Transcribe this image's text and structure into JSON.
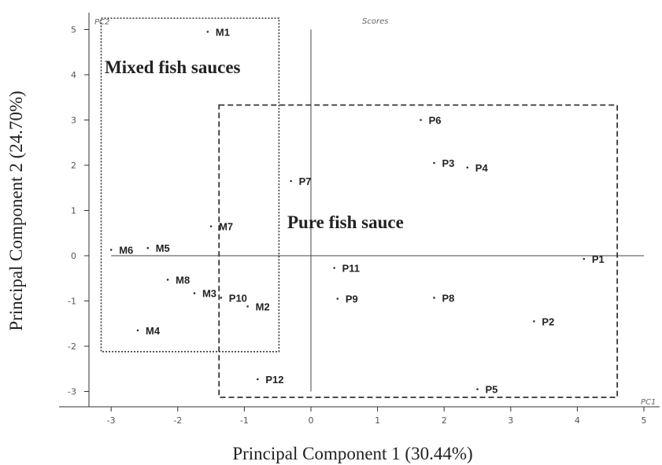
{
  "chart_data": {
    "type": "scatter",
    "title": "Scores",
    "xlabel": "Principal Component 1 (30.44%)",
    "ylabel": "Principal Component 2 (24.70%)",
    "x_axis_tag": "PC1",
    "y_axis_tag": "PC2",
    "xlim": [
      -3.4,
      5.0
    ],
    "ylim": [
      -3.4,
      5.2
    ],
    "xticks": [
      -3,
      -2,
      -1,
      0,
      1,
      2,
      3,
      4,
      5
    ],
    "yticks": [
      -3,
      -2,
      -1,
      0,
      1,
      2,
      3,
      4,
      5
    ],
    "grid": false,
    "points": [
      {
        "label": "M1",
        "x": -1.55,
        "y": 4.95
      },
      {
        "label": "M2",
        "x": -0.95,
        "y": -1.12
      },
      {
        "label": "M3",
        "x": -1.75,
        "y": -0.83
      },
      {
        "label": "M4",
        "x": -2.6,
        "y": -1.65
      },
      {
        "label": "M5",
        "x": -2.45,
        "y": 0.17
      },
      {
        "label": "M6",
        "x": -3.0,
        "y": 0.13
      },
      {
        "label": "M7",
        "x": -1.5,
        "y": 0.65
      },
      {
        "label": "M8",
        "x": -2.15,
        "y": -0.53
      },
      {
        "label": "P1",
        "x": 4.1,
        "y": -0.07
      },
      {
        "label": "P2",
        "x": 3.35,
        "y": -1.45
      },
      {
        "label": "P3",
        "x": 1.85,
        "y": 2.05
      },
      {
        "label": "P4",
        "x": 2.35,
        "y": 1.95
      },
      {
        "label": "P5",
        "x": 2.5,
        "y": -2.95
      },
      {
        "label": "P6",
        "x": 1.65,
        "y": 3.0
      },
      {
        "label": "P7",
        "x": -0.3,
        "y": 1.65
      },
      {
        "label": "P8",
        "x": 1.85,
        "y": -0.93
      },
      {
        "label": "P9",
        "x": 0.4,
        "y": -0.95
      },
      {
        "label": "P10",
        "x": -1.35,
        "y": -0.93
      },
      {
        "label": "P11",
        "x": 0.35,
        "y": -0.27
      },
      {
        "label": "P12",
        "x": -0.8,
        "y": -2.73
      }
    ],
    "groups": [
      {
        "name": "Mixed fish sauces",
        "style": "dotted",
        "xmin": -3.15,
        "xmax": -0.48,
        "ymin": -2.12,
        "ymax": 5.25
      },
      {
        "name": "Pure fish sauce",
        "style": "dashed",
        "xmin": -1.38,
        "xmax": 4.6,
        "ymin": -3.13,
        "ymax": 3.33
      }
    ]
  }
}
